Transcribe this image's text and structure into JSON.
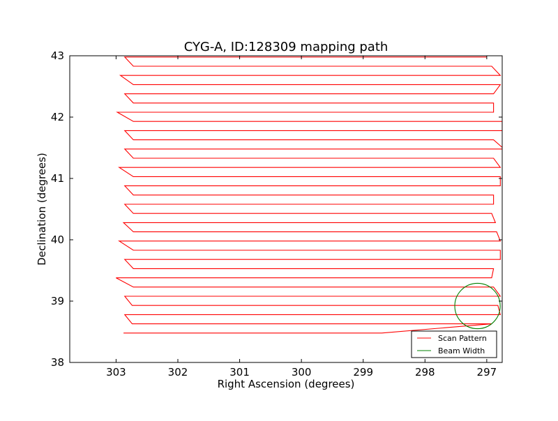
{
  "chart_data": {
    "type": "line",
    "title": "CYG-A, ID:128309 mapping path",
    "xlabel": "Right Ascension (degrees)",
    "ylabel": "Declination (degrees)",
    "xlim": [
      303.75,
      296.75
    ],
    "ylim": [
      38,
      43
    ],
    "x_ticks": [
      303,
      302,
      301,
      300,
      299,
      298,
      297
    ],
    "y_ticks": [
      38,
      39,
      40,
      41,
      42,
      43
    ],
    "x_tick_labels": [
      "303",
      "302",
      "301",
      "300",
      "299",
      "298",
      "297"
    ],
    "y_tick_labels": [
      "38",
      "39",
      "40",
      "41",
      "42",
      "43"
    ],
    "legend_position": "lower-right",
    "grid": false,
    "series": [
      {
        "name": "Scan Pattern",
        "color": "#ff0000",
        "scan_rows": [
          {
            "dec": 38.48,
            "ra_start": 302.88,
            "ra_end": 298.7
          },
          {
            "dec": 38.63,
            "ra_start": 302.74,
            "ra_end": 296.92
          },
          {
            "dec": 38.78,
            "ra_start": 302.86,
            "ra_end": 296.78
          },
          {
            "dec": 38.93,
            "ra_start": 302.74,
            "ra_end": 296.82
          },
          {
            "dec": 39.08,
            "ra_start": 302.86,
            "ra_end": 296.78
          },
          {
            "dec": 39.23,
            "ra_start": 302.72,
            "ra_end": 296.89
          },
          {
            "dec": 39.38,
            "ra_start": 303.0,
            "ra_end": 296.92
          },
          {
            "dec": 39.53,
            "ra_start": 302.72,
            "ra_end": 296.89
          },
          {
            "dec": 39.68,
            "ra_start": 302.86,
            "ra_end": 296.78
          },
          {
            "dec": 39.83,
            "ra_start": 302.72,
            "ra_end": 296.78
          },
          {
            "dec": 39.98,
            "ra_start": 302.95,
            "ra_end": 296.78
          },
          {
            "dec": 40.13,
            "ra_start": 302.72,
            "ra_end": 296.84
          },
          {
            "dec": 40.28,
            "ra_start": 302.88,
            "ra_end": 296.86
          },
          {
            "dec": 40.43,
            "ra_start": 302.72,
            "ra_end": 296.92
          },
          {
            "dec": 40.58,
            "ra_start": 302.86,
            "ra_end": 296.89
          },
          {
            "dec": 40.73,
            "ra_start": 302.72,
            "ra_end": 296.89
          },
          {
            "dec": 40.88,
            "ra_start": 302.86,
            "ra_end": 296.78
          },
          {
            "dec": 41.03,
            "ra_start": 302.72,
            "ra_end": 296.78
          },
          {
            "dec": 41.18,
            "ra_start": 302.95,
            "ra_end": 296.78
          },
          {
            "dec": 41.33,
            "ra_start": 302.72,
            "ra_end": 296.89
          },
          {
            "dec": 41.48,
            "ra_start": 302.86,
            "ra_end": 296.72
          },
          {
            "dec": 41.63,
            "ra_start": 302.72,
            "ra_end": 296.89
          },
          {
            "dec": 41.78,
            "ra_start": 302.86,
            "ra_end": 296.75
          },
          {
            "dec": 41.93,
            "ra_start": 302.72,
            "ra_end": 296.75
          },
          {
            "dec": 42.08,
            "ra_start": 302.98,
            "ra_end": 296.89
          },
          {
            "dec": 42.23,
            "ra_start": 302.72,
            "ra_end": 296.89
          },
          {
            "dec": 42.38,
            "ra_start": 302.86,
            "ra_end": 296.89
          },
          {
            "dec": 42.53,
            "ra_start": 302.72,
            "ra_end": 296.78
          },
          {
            "dec": 42.68,
            "ra_start": 302.93,
            "ra_end": 296.78
          },
          {
            "dec": 42.83,
            "ra_start": 302.72,
            "ra_end": 296.92
          },
          {
            "dec": 42.98,
            "ra_start": 302.86,
            "ra_end": 297.0
          }
        ]
      },
      {
        "name": "Beam Width",
        "color": "#008000",
        "center_ra": 297.15,
        "center_dec": 38.92,
        "radius_deg": 0.37
      }
    ]
  }
}
